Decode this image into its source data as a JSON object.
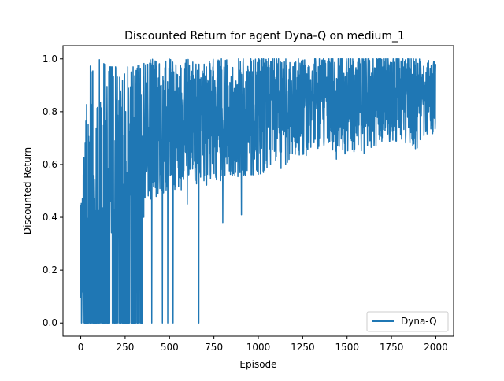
{
  "chart_data": {
    "type": "line",
    "title": "Discounted Return for agent Dyna-Q on medium_1",
    "xlabel": "Episode",
    "ylabel": "Discounted Return",
    "xlim": [
      -100,
      2100
    ],
    "ylim": [
      -0.05,
      1.05
    ],
    "xticks": [
      0,
      250,
      500,
      750,
      1000,
      1250,
      1500,
      1750,
      2000
    ],
    "yticks": [
      0.0,
      0.2,
      0.4,
      0.6,
      0.8,
      1.0
    ],
    "xtick_labels": [
      "0",
      "250",
      "500",
      "750",
      "1000",
      "1250",
      "1500",
      "1750",
      "2000"
    ],
    "ytick_labels": [
      "0.0",
      "0.2",
      "0.4",
      "0.6",
      "0.8",
      "1.0"
    ],
    "grid": false,
    "legend_position": "lower-right",
    "series": [
      {
        "name": "Dyna-Q",
        "color": "#1f77b4",
        "n_points": 2000,
        "note": "Noisy per-episode return; sampled envelope listed (episode, low, high, typical)",
        "envelope": [
          {
            "x": 0,
            "low": 0.0,
            "high": 0.53,
            "mid": 0.3
          },
          {
            "x": 50,
            "low": 0.0,
            "high": 0.98,
            "mid": 0.45
          },
          {
            "x": 100,
            "low": 0.0,
            "high": 1.0,
            "mid": 0.5
          },
          {
            "x": 150,
            "low": 0.0,
            "high": 0.97,
            "mid": 0.55
          },
          {
            "x": 200,
            "low": 0.0,
            "high": 0.97,
            "mid": 0.6
          },
          {
            "x": 250,
            "low": 0.0,
            "high": 0.97,
            "mid": 0.65
          },
          {
            "x": 300,
            "low": 0.0,
            "high": 0.97,
            "mid": 0.68
          },
          {
            "x": 350,
            "low": 0.4,
            "high": 0.98,
            "mid": 0.7
          },
          {
            "x": 400,
            "low": 0.0,
            "high": 1.0,
            "mid": 0.72
          },
          {
            "x": 450,
            "low": 0.0,
            "high": 0.98,
            "mid": 0.73
          },
          {
            "x": 500,
            "low": 0.0,
            "high": 1.0,
            "mid": 0.74
          },
          {
            "x": 550,
            "low": 0.5,
            "high": 0.98,
            "mid": 0.75
          },
          {
            "x": 600,
            "low": 0.45,
            "high": 1.0,
            "mid": 0.76
          },
          {
            "x": 650,
            "low": 0.0,
            "high": 0.98,
            "mid": 0.77
          },
          {
            "x": 700,
            "low": 0.45,
            "high": 0.98,
            "mid": 0.77
          },
          {
            "x": 750,
            "low": 0.5,
            "high": 1.0,
            "mid": 0.78
          },
          {
            "x": 800,
            "low": 0.38,
            "high": 1.0,
            "mid": 0.79
          },
          {
            "x": 850,
            "low": 0.55,
            "high": 1.0,
            "mid": 0.8
          },
          {
            "x": 900,
            "low": 0.55,
            "high": 1.0,
            "mid": 0.8
          },
          {
            "x": 950,
            "low": 0.41,
            "high": 1.0,
            "mid": 0.81
          },
          {
            "x": 1000,
            "low": 0.52,
            "high": 1.0,
            "mid": 0.81
          },
          {
            "x": 1100,
            "low": 0.55,
            "high": 1.0,
            "mid": 0.82
          },
          {
            "x": 1200,
            "low": 0.62,
            "high": 1.0,
            "mid": 0.83
          },
          {
            "x": 1300,
            "low": 0.64,
            "high": 1.0,
            "mid": 0.84
          },
          {
            "x": 1400,
            "low": 0.66,
            "high": 1.0,
            "mid": 0.85
          },
          {
            "x": 1500,
            "low": 0.63,
            "high": 1.0,
            "mid": 0.85
          },
          {
            "x": 1600,
            "low": 0.64,
            "high": 1.0,
            "mid": 0.86
          },
          {
            "x": 1700,
            "low": 0.68,
            "high": 1.0,
            "mid": 0.86
          },
          {
            "x": 1800,
            "low": 0.69,
            "high": 1.0,
            "mid": 0.87
          },
          {
            "x": 1900,
            "low": 0.66,
            "high": 1.0,
            "mid": 0.87
          },
          {
            "x": 2000,
            "low": 0.72,
            "high": 0.99,
            "mid": 0.85
          }
        ],
        "zero_dips": [
          40,
          60,
          90,
          120,
          150,
          180,
          195,
          210,
          240,
          260,
          285,
          310,
          330,
          400,
          460,
          490,
          520,
          665
        ],
        "sharp_dips": [
          {
            "x": 355,
            "y": 0.4
          },
          {
            "x": 600,
            "y": 0.45
          },
          {
            "x": 800,
            "y": 0.38
          },
          {
            "x": 905,
            "y": 0.41
          },
          {
            "x": 1440,
            "y": 0.62
          },
          {
            "x": 1885,
            "y": 0.66
          }
        ]
      }
    ]
  }
}
